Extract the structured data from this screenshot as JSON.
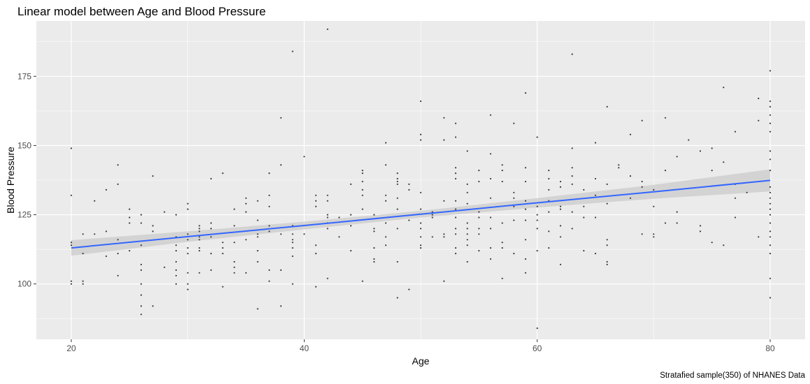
{
  "chart_data": {
    "type": "scatter",
    "title": "Linear model between Age and Blood Pressure",
    "xlabel": "Age",
    "ylabel": "Blood Pressure",
    "caption": "Stratafied sample(350) of NHANES Data",
    "xlim": [
      17,
      83
    ],
    "ylim": [
      80,
      195
    ],
    "x_ticks": [
      20,
      40,
      60,
      80
    ],
    "y_ticks": [
      100,
      125,
      150,
      175
    ],
    "grid": true,
    "legend": "none",
    "colors": {
      "panel": "#ebebeb",
      "grid": "#ffffff",
      "points": "#3a3a3a",
      "fit_line": "#3366ff",
      "ribbon": "#cfcfcf"
    },
    "fit": {
      "x": [
        20,
        30,
        40,
        50,
        60,
        70,
        80
      ],
      "y": [
        113.0,
        117.1,
        121.1,
        125.2,
        129.3,
        133.3,
        137.4
      ],
      "ymin": [
        110.2,
        115.2,
        119.7,
        124.0,
        127.6,
        130.8,
        133.4
      ],
      "ymax": [
        115.8,
        119.0,
        122.5,
        126.4,
        131.0,
        135.8,
        141.4
      ]
    },
    "points": [
      [
        20,
        149
      ],
      [
        20,
        132
      ],
      [
        20,
        115
      ],
      [
        20,
        114
      ],
      [
        20,
        101
      ],
      [
        20,
        100
      ],
      [
        21,
        118
      ],
      [
        21,
        111
      ],
      [
        21,
        101
      ],
      [
        21,
        100
      ],
      [
        22,
        130
      ],
      [
        22,
        118
      ],
      [
        23,
        134
      ],
      [
        23,
        119
      ],
      [
        23,
        110
      ],
      [
        24,
        143
      ],
      [
        24,
        136
      ],
      [
        24,
        116
      ],
      [
        24,
        111
      ],
      [
        24,
        103
      ],
      [
        25,
        127
      ],
      [
        25,
        124
      ],
      [
        25,
        122
      ],
      [
        25,
        112
      ],
      [
        26,
        125
      ],
      [
        26,
        122
      ],
      [
        26,
        114
      ],
      [
        26,
        107
      ],
      [
        26,
        105
      ],
      [
        26,
        100
      ],
      [
        26,
        96
      ],
      [
        26,
        92
      ],
      [
        26,
        89
      ],
      [
        27,
        139
      ],
      [
        27,
        121
      ],
      [
        27,
        119
      ],
      [
        27,
        92
      ],
      [
        28,
        126
      ],
      [
        28,
        106
      ],
      [
        29,
        125
      ],
      [
        29,
        117
      ],
      [
        29,
        114
      ],
      [
        29,
        112
      ],
      [
        29,
        108
      ],
      [
        29,
        105
      ],
      [
        29,
        103
      ],
      [
        29,
        100
      ],
      [
        30,
        129
      ],
      [
        30,
        127
      ],
      [
        30,
        118
      ],
      [
        30,
        116
      ],
      [
        30,
        113
      ],
      [
        30,
        111
      ],
      [
        30,
        104
      ],
      [
        30,
        100
      ],
      [
        30,
        98
      ],
      [
        31,
        121
      ],
      [
        31,
        120
      ],
      [
        31,
        119
      ],
      [
        31,
        117
      ],
      [
        31,
        116
      ],
      [
        31,
        113
      ],
      [
        31,
        112
      ],
      [
        31,
        104
      ],
      [
        32,
        138
      ],
      [
        32,
        122
      ],
      [
        32,
        120
      ],
      [
        32,
        117
      ],
      [
        32,
        111
      ],
      [
        32,
        105
      ],
      [
        33,
        140
      ],
      [
        33,
        115
      ],
      [
        33,
        113
      ],
      [
        33,
        111
      ],
      [
        33,
        99
      ],
      [
        34,
        127
      ],
      [
        34,
        121
      ],
      [
        34,
        115
      ],
      [
        34,
        108
      ],
      [
        34,
        106
      ],
      [
        34,
        104
      ],
      [
        35,
        131
      ],
      [
        35,
        129
      ],
      [
        35,
        126
      ],
      [
        35,
        116
      ],
      [
        35,
        104
      ],
      [
        36,
        130
      ],
      [
        36,
        123
      ],
      [
        36,
        118
      ],
      [
        36,
        117
      ],
      [
        36,
        112
      ],
      [
        36,
        108
      ],
      [
        36,
        91
      ],
      [
        37,
        140
      ],
      [
        37,
        132
      ],
      [
        37,
        128
      ],
      [
        37,
        121
      ],
      [
        37,
        119
      ],
      [
        37,
        105
      ],
      [
        37,
        101
      ],
      [
        38,
        160
      ],
      [
        38,
        143
      ],
      [
        38,
        118
      ],
      [
        38,
        105
      ],
      [
        38,
        92
      ],
      [
        39,
        184
      ],
      [
        39,
        121
      ],
      [
        39,
        118
      ],
      [
        39,
        116
      ],
      [
        39,
        115
      ],
      [
        39,
        113
      ],
      [
        39,
        110
      ],
      [
        39,
        100
      ],
      [
        40,
        146
      ],
      [
        40,
        118
      ],
      [
        41,
        132
      ],
      [
        41,
        130
      ],
      [
        41,
        128
      ],
      [
        41,
        114
      ],
      [
        41,
        111
      ],
      [
        41,
        99
      ],
      [
        42,
        192
      ],
      [
        42,
        132
      ],
      [
        42,
        130
      ],
      [
        42,
        125
      ],
      [
        42,
        124
      ],
      [
        42,
        122
      ],
      [
        42,
        120
      ],
      [
        42,
        102
      ],
      [
        43,
        124
      ],
      [
        43,
        117
      ],
      [
        44,
        136
      ],
      [
        44,
        125
      ],
      [
        44,
        121
      ],
      [
        44,
        112
      ],
      [
        45,
        141
      ],
      [
        45,
        140
      ],
      [
        45,
        137
      ],
      [
        45,
        134
      ],
      [
        45,
        132
      ],
      [
        45,
        127
      ],
      [
        45,
        101
      ],
      [
        46,
        125
      ],
      [
        46,
        120
      ],
      [
        46,
        119
      ],
      [
        46,
        113
      ],
      [
        46,
        109
      ],
      [
        46,
        108
      ],
      [
        47,
        151
      ],
      [
        47,
        143
      ],
      [
        47,
        132
      ],
      [
        47,
        130
      ],
      [
        47,
        122
      ],
      [
        47,
        117
      ],
      [
        47,
        114
      ],
      [
        48,
        140
      ],
      [
        48,
        138
      ],
      [
        48,
        137
      ],
      [
        48,
        136
      ],
      [
        48,
        131
      ],
      [
        48,
        127
      ],
      [
        48,
        120
      ],
      [
        48,
        108
      ],
      [
        48,
        95
      ],
      [
        49,
        136
      ],
      [
        49,
        134
      ],
      [
        49,
        123
      ],
      [
        49,
        98
      ],
      [
        50,
        166
      ],
      [
        50,
        154
      ],
      [
        50,
        152
      ],
      [
        50,
        133
      ],
      [
        50,
        127
      ],
      [
        50,
        122
      ],
      [
        50,
        120
      ],
      [
        50,
        117
      ],
      [
        50,
        114
      ],
      [
        50,
        113
      ],
      [
        51,
        126
      ],
      [
        51,
        125
      ],
      [
        51,
        124
      ],
      [
        51,
        117
      ],
      [
        52,
        160
      ],
      [
        52,
        152
      ],
      [
        52,
        130
      ],
      [
        52,
        118
      ],
      [
        52,
        117
      ],
      [
        52,
        101
      ],
      [
        53,
        158
      ],
      [
        53,
        153
      ],
      [
        53,
        142
      ],
      [
        53,
        140
      ],
      [
        53,
        138
      ],
      [
        53,
        130
      ],
      [
        53,
        127
      ],
      [
        53,
        124
      ],
      [
        53,
        120
      ],
      [
        53,
        118
      ],
      [
        53,
        113
      ],
      [
        53,
        111
      ],
      [
        54,
        148
      ],
      [
        54,
        136
      ],
      [
        54,
        133
      ],
      [
        54,
        129
      ],
      [
        54,
        122
      ],
      [
        54,
        120
      ],
      [
        54,
        118
      ],
      [
        54,
        116
      ],
      [
        54,
        114
      ],
      [
        54,
        108
      ],
      [
        55,
        141
      ],
      [
        55,
        137
      ],
      [
        55,
        126
      ],
      [
        55,
        124
      ],
      [
        55,
        120
      ],
      [
        55,
        118
      ],
      [
        55,
        112
      ],
      [
        56,
        161
      ],
      [
        56,
        147
      ],
      [
        56,
        138
      ],
      [
        56,
        131
      ],
      [
        56,
        124
      ],
      [
        56,
        120
      ],
      [
        56,
        113
      ],
      [
        56,
        109
      ],
      [
        57,
        143
      ],
      [
        57,
        141
      ],
      [
        57,
        137
      ],
      [
        57,
        122
      ],
      [
        57,
        115
      ],
      [
        57,
        113
      ],
      [
        57,
        102
      ],
      [
        58,
        158
      ],
      [
        58,
        133
      ],
      [
        58,
        131
      ],
      [
        58,
        128
      ],
      [
        58,
        123
      ],
      [
        58,
        111
      ],
      [
        59,
        169
      ],
      [
        59,
        142
      ],
      [
        59,
        137
      ],
      [
        59,
        130
      ],
      [
        59,
        127
      ],
      [
        59,
        123
      ],
      [
        59,
        116
      ],
      [
        59,
        109
      ],
      [
        59,
        104
      ],
      [
        60,
        153
      ],
      [
        60,
        128
      ],
      [
        60,
        125
      ],
      [
        60,
        123
      ],
      [
        60,
        120
      ],
      [
        60,
        112
      ],
      [
        60,
        84
      ],
      [
        61,
        141
      ],
      [
        61,
        138
      ],
      [
        61,
        134
      ],
      [
        61,
        130
      ],
      [
        61,
        126
      ],
      [
        61,
        119
      ],
      [
        61,
        113
      ],
      [
        62,
        137
      ],
      [
        62,
        135
      ],
      [
        62,
        128
      ],
      [
        62,
        127
      ],
      [
        62,
        121
      ],
      [
        62,
        117
      ],
      [
        62,
        107
      ],
      [
        63,
        183
      ],
      [
        63,
        149
      ],
      [
        63,
        142
      ],
      [
        63,
        139
      ],
      [
        63,
        136
      ],
      [
        63,
        126
      ],
      [
        63,
        120
      ],
      [
        64,
        134
      ],
      [
        64,
        128
      ],
      [
        64,
        124
      ],
      [
        64,
        112
      ],
      [
        65,
        151
      ],
      [
        65,
        138
      ],
      [
        65,
        132
      ],
      [
        65,
        124
      ],
      [
        65,
        111
      ],
      [
        66,
        164
      ],
      [
        66,
        136
      ],
      [
        66,
        129
      ],
      [
        66,
        116
      ],
      [
        66,
        114
      ],
      [
        66,
        108
      ],
      [
        66,
        107
      ],
      [
        67,
        143
      ],
      [
        67,
        142
      ],
      [
        68,
        154
      ],
      [
        68,
        139
      ],
      [
        68,
        131
      ],
      [
        69,
        159
      ],
      [
        69,
        137
      ],
      [
        69,
        135
      ],
      [
        69,
        118
      ],
      [
        70,
        134
      ],
      [
        70,
        128
      ],
      [
        70,
        118
      ],
      [
        70,
        117
      ],
      [
        71,
        160
      ],
      [
        71,
        141
      ],
      [
        71,
        122
      ],
      [
        72,
        146
      ],
      [
        72,
        126
      ],
      [
        72,
        122
      ],
      [
        73,
        152
      ],
      [
        74,
        148
      ],
      [
        74,
        121
      ],
      [
        74,
        119
      ],
      [
        75,
        149
      ],
      [
        75,
        141
      ],
      [
        75,
        115
      ],
      [
        76,
        171
      ],
      [
        76,
        144
      ],
      [
        76,
        114
      ],
      [
        77,
        155
      ],
      [
        77,
        136
      ],
      [
        77,
        131
      ],
      [
        77,
        124
      ],
      [
        78,
        133
      ],
      [
        79,
        167
      ],
      [
        79,
        159
      ],
      [
        79,
        117
      ],
      [
        80,
        177
      ],
      [
        80,
        166
      ],
      [
        80,
        164
      ],
      [
        80,
        161
      ],
      [
        80,
        158
      ],
      [
        80,
        155
      ],
      [
        80,
        148
      ],
      [
        80,
        145
      ],
      [
        80,
        141
      ],
      [
        80,
        135
      ],
      [
        80,
        133
      ],
      [
        80,
        131
      ],
      [
        80,
        129
      ],
      [
        80,
        127
      ],
      [
        80,
        125
      ],
      [
        80,
        122
      ],
      [
        80,
        119
      ],
      [
        80,
        117
      ],
      [
        80,
        114
      ],
      [
        80,
        111
      ],
      [
        80,
        102
      ],
      [
        80,
        95
      ]
    ]
  }
}
